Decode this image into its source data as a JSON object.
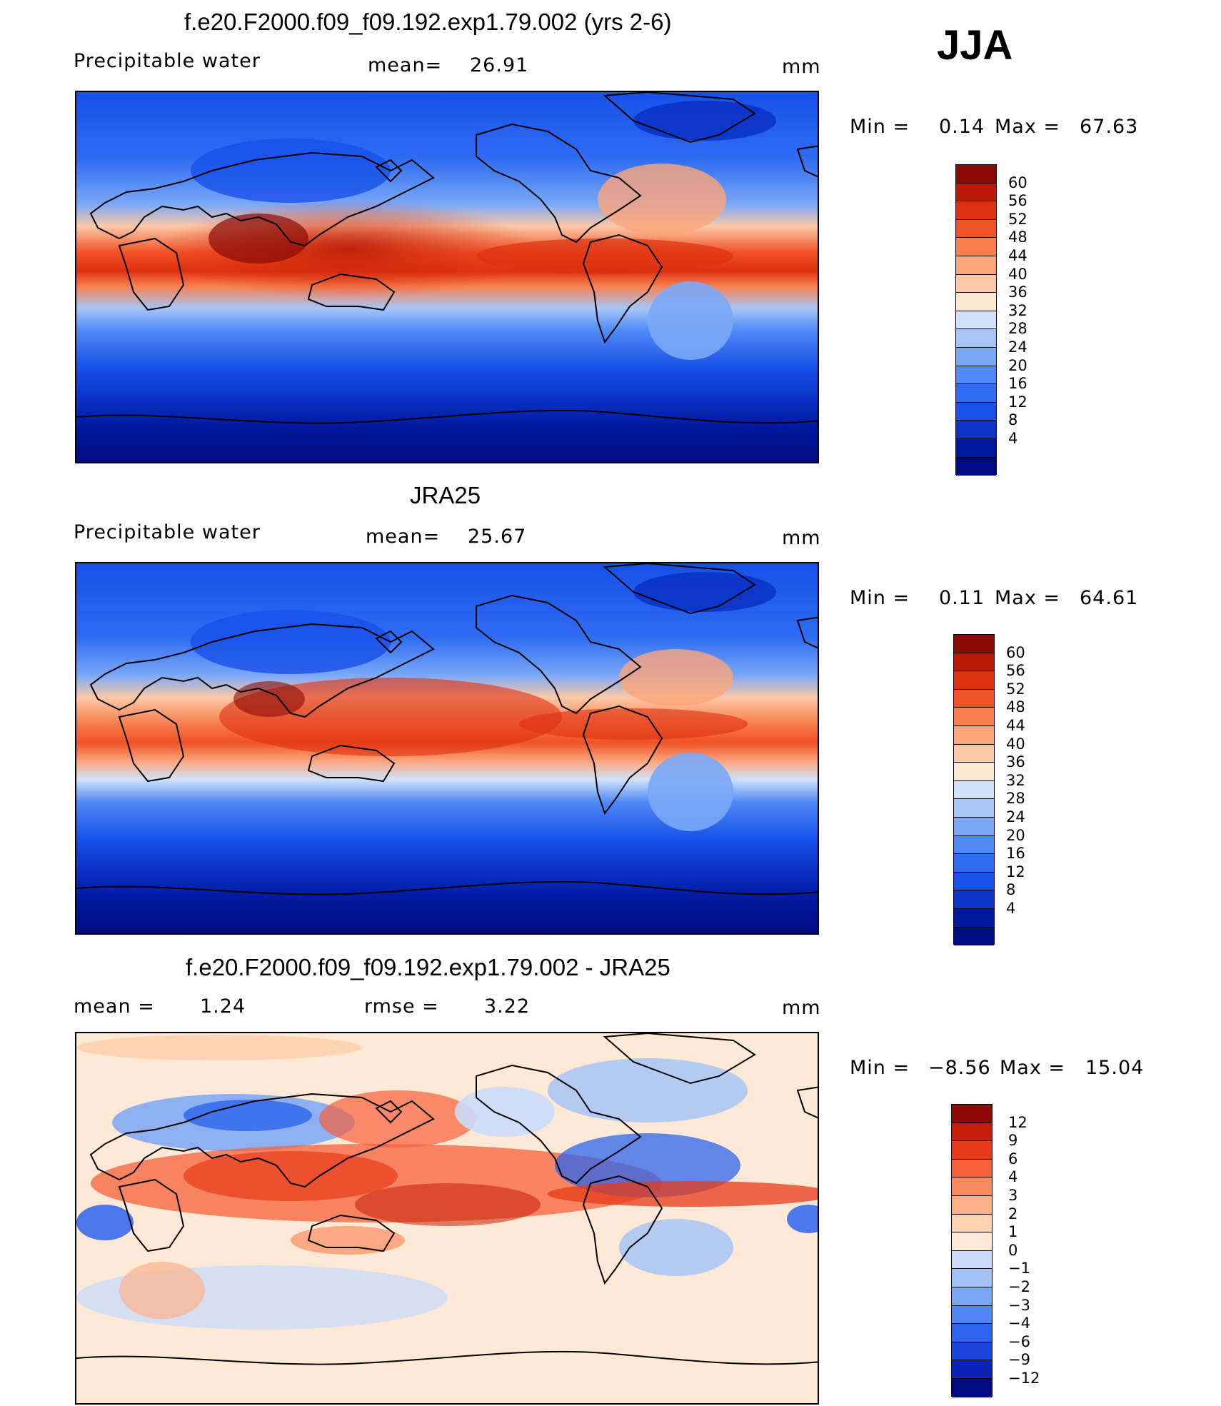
{
  "season": "JJA",
  "colors": {
    "abs_scale": [
      "#000a80",
      "#00189e",
      "#0a33c8",
      "#1850e8",
      "#2f6cf2",
      "#4f8af6",
      "#7aa8f7",
      "#a6c6f8",
      "#d0e2fa",
      "#fde8d4",
      "#fcc9a6",
      "#fca57b",
      "#f97f4e",
      "#f05226",
      "#dd3010",
      "#b91a06",
      "#8a0a05"
    ],
    "diff_scale": [
      "#000a80",
      "#0a22b8",
      "#1a45dc",
      "#2d64ee",
      "#4f86f4",
      "#7aa6f6",
      "#a2c2f8",
      "#cadcfa",
      "#fde9d6",
      "#fcd2b0",
      "#fcb08a",
      "#fb8b5f",
      "#f6603a",
      "#e73a18",
      "#c61e08",
      "#8d0a05"
    ]
  },
  "panels": [
    {
      "id": "model",
      "title": "f.e20.F2000.f09_f09.192.exp1.79.002 (yrs 2-6)",
      "left_label": "Precipitable  water",
      "stat_label": "mean=",
      "stat_value": "26.91",
      "units": "mm",
      "min_label": "Min  =",
      "min_value": "0.14",
      "max_label": "Max  =",
      "max_value": "67.63",
      "levels": [
        "60",
        "56",
        "52",
        "48",
        "44",
        "40",
        "36",
        "32",
        "28",
        "24",
        "20",
        "16",
        "12",
        "8",
        "4"
      ]
    },
    {
      "id": "obs",
      "title": "JRA25",
      "left_label": "Precipitable  water",
      "stat_label": "mean=",
      "stat_value": "25.67",
      "units": "mm",
      "min_label": "Min  =",
      "min_value": "0.11",
      "max_label": "Max  =",
      "max_value": "64.61",
      "levels": [
        "60",
        "56",
        "52",
        "48",
        "44",
        "40",
        "36",
        "32",
        "28",
        "24",
        "20",
        "16",
        "12",
        "8",
        "4"
      ]
    },
    {
      "id": "diff",
      "title": "f.e20.F2000.f09_f09.192.exp1.79.002 - JRA25",
      "left_label": "mean  =",
      "left_value": "1.24",
      "stat_label": "rmse  =",
      "stat_value": "3.22",
      "units": "mm",
      "min_label": "Min  =",
      "min_value": "−8.56",
      "max_label": "Max  =",
      "max_value": "15.04",
      "levels": [
        "12",
        "9",
        "6",
        "4",
        "3",
        "2",
        "1",
        "0",
        "−1",
        "−2",
        "−3",
        "−4",
        "−6",
        "−9",
        "−12"
      ]
    }
  ]
}
